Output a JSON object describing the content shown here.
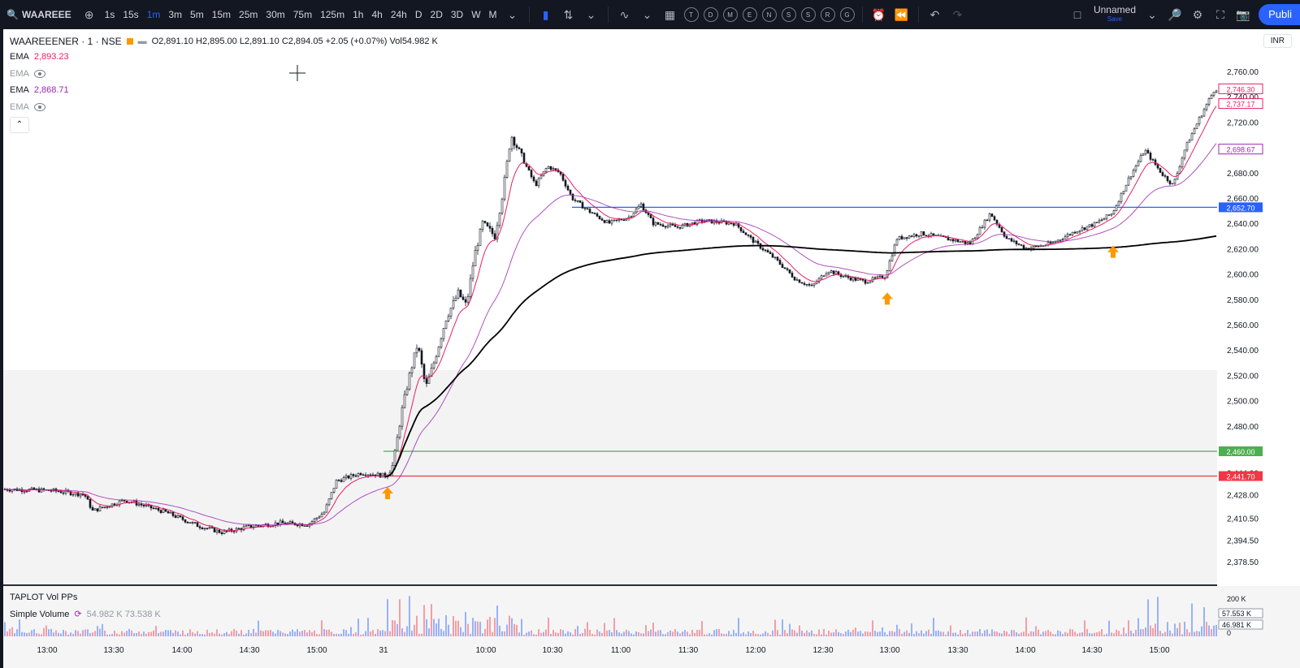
{
  "toolbar": {
    "symbol": "WAAREEE",
    "intervals": [
      "1s",
      "15s",
      "1m",
      "3m",
      "5m",
      "15m",
      "25m",
      "30m",
      "75m",
      "125m",
      "1h",
      "4h",
      "24h",
      "D",
      "2D",
      "3D",
      "W",
      "M"
    ],
    "active_interval": "1m",
    "layout_letters": [
      "T",
      "D",
      "M",
      "E",
      "N",
      "S",
      "S",
      "R",
      "G"
    ],
    "layout_name": "Unnamed",
    "save_label": "Save",
    "publish_label": "Publi"
  },
  "legend": {
    "title": "WAAREEENER · 1 · NSE",
    "ohlc": "O2,891.10  H2,895.00  L2,891.10  C2,894.05  +2.05 (+0.07%)  Vol54.982 K",
    "indicators": [
      {
        "name": "EMA",
        "value": "2,893.23",
        "color": "#e91e63",
        "visible": true
      },
      {
        "name": "EMA",
        "value": "",
        "color": "#9598a1",
        "visible": false
      },
      {
        "name": "EMA",
        "value": "2,868.71",
        "color": "#9c27b0",
        "visible": true
      },
      {
        "name": "EMA",
        "value": "",
        "color": "#9598a1",
        "visible": false
      }
    ],
    "currency": "INR"
  },
  "volume_pane": {
    "title": "TAPLOT Vol PPs",
    "name": "Simple Volume",
    "values": "54.982 K  73.538 K",
    "scale_labels": [
      "200 K",
      "57.553 K",
      "46.981 K",
      "0"
    ]
  },
  "chart_data": {
    "type": "candlestick",
    "title": "WAAREEENER · 1 · NSE",
    "x_ticks": [
      "13:00",
      "13:30",
      "14:00",
      "14:30",
      "15:00",
      "31",
      "10:00",
      "10:30",
      "11:00",
      "11:30",
      "12:00",
      "12:30",
      "13:00",
      "13:30",
      "14:00",
      "14:30",
      "15:00"
    ],
    "y_ticks": [
      "2,760.00",
      "2,740.00",
      "2,720.00",
      "2,700.00",
      "2,680.00",
      "2,660.00",
      "2,640.00",
      "2,620.00",
      "2,600.00",
      "2,580.00",
      "2,560.00",
      "2,540.00",
      "2,520.00",
      "2,500.00",
      "2,480.00",
      "2,460.00",
      "2,444.00",
      "2,428.00",
      "2,410.50",
      "2,394.50",
      "2,378.50"
    ],
    "ylim": [
      2370,
      2770
    ],
    "price_path": [
      [
        0,
        2432
      ],
      [
        60,
        2431
      ],
      [
        100,
        2428
      ],
      [
        110,
        2416
      ],
      [
        150,
        2424
      ],
      [
        200,
        2415
      ],
      [
        240,
        2405
      ],
      [
        270,
        2400
      ],
      [
        300,
        2404
      ],
      [
        340,
        2407
      ],
      [
        375,
        2406
      ],
      [
        395,
        2415
      ],
      [
        410,
        2438
      ],
      [
        440,
        2444
      ],
      [
        470,
        2442
      ],
      [
        480,
        2450
      ],
      [
        490,
        2490
      ],
      [
        500,
        2520
      ],
      [
        510,
        2545
      ],
      [
        520,
        2510
      ],
      [
        530,
        2530
      ],
      [
        545,
        2565
      ],
      [
        560,
        2585
      ],
      [
        570,
        2575
      ],
      [
        580,
        2615
      ],
      [
        590,
        2640
      ],
      [
        605,
        2630
      ],
      [
        615,
        2665
      ],
      [
        625,
        2710
      ],
      [
        640,
        2690
      ],
      [
        655,
        2670
      ],
      [
        670,
        2685
      ],
      [
        685,
        2680
      ],
      [
        700,
        2660
      ],
      [
        720,
        2650
      ],
      [
        745,
        2640
      ],
      [
        770,
        2645
      ],
      [
        785,
        2655
      ],
      [
        800,
        2640
      ],
      [
        830,
        2637
      ],
      [
        860,
        2642
      ],
      [
        900,
        2640
      ],
      [
        925,
        2625
      ],
      [
        950,
        2612
      ],
      [
        975,
        2596
      ],
      [
        995,
        2590
      ],
      [
        1015,
        2603
      ],
      [
        1035,
        2598
      ],
      [
        1060,
        2594
      ],
      [
        1085,
        2598
      ],
      [
        1100,
        2628
      ],
      [
        1130,
        2632
      ],
      [
        1160,
        2628
      ],
      [
        1190,
        2624
      ],
      [
        1215,
        2648
      ],
      [
        1235,
        2628
      ],
      [
        1260,
        2620
      ],
      [
        1290,
        2624
      ],
      [
        1320,
        2634
      ],
      [
        1345,
        2640
      ],
      [
        1365,
        2648
      ],
      [
        1385,
        2675
      ],
      [
        1405,
        2698
      ],
      [
        1425,
        2680
      ],
      [
        1440,
        2670
      ],
      [
        1455,
        2700
      ],
      [
        1470,
        2720
      ],
      [
        1490,
        2745
      ],
      [
        1495,
        2747
      ]
    ],
    "lines": [
      {
        "name": "",
        "value": 2652.7,
        "color": "#2962ff",
        "label": "2,652.70"
      },
      {
        "name": "",
        "value": 2460.0,
        "color": "#4caf50",
        "label": "2,460.00"
      },
      {
        "name": "",
        "value": 2441.7,
        "color": "#f23645",
        "label": "2,441.70"
      }
    ],
    "series_labels": [
      {
        "value": 2746.3,
        "color": "#e91e63",
        "label": "2,746.30"
      },
      {
        "value": 2737.17,
        "color": "#e91e63",
        "label": "2,737.17"
      },
      {
        "value": 2698.67,
        "color": "#9c27b0",
        "label": "2,698.67"
      }
    ],
    "signals": [
      {
        "x": 473,
        "price": 2436
      },
      {
        "x": 1088,
        "price": 2588
      },
      {
        "x": 1366,
        "price": 2625
      }
    ]
  }
}
